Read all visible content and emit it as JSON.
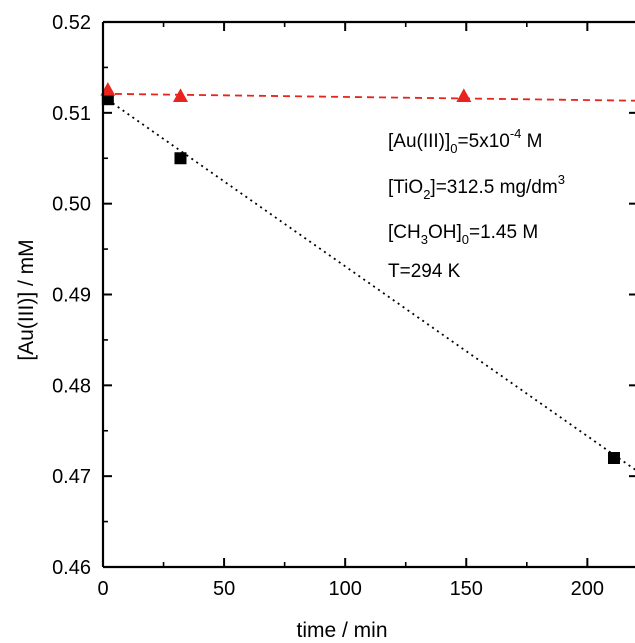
{
  "chart_data": {
    "type": "scatter",
    "title": "",
    "xlabel": "time / min",
    "ylabel": "[Au(III)] / mM",
    "xlim": [
      0,
      230
    ],
    "ylim": [
      0.46,
      0.52
    ],
    "x_ticks": [
      "0",
      "50",
      "100",
      "150",
      "200"
    ],
    "y_ticks": [
      "0.46",
      "0.47",
      "0.48",
      "0.49",
      "0.50",
      "0.51",
      "0.52"
    ],
    "grid": false,
    "series": [
      {
        "marker": "square",
        "color": "#000000",
        "x": [
          2,
          32,
          211
        ],
        "y": [
          0.5115,
          0.505,
          0.472
        ],
        "fit": {
          "style": "dotted",
          "color": "#000000",
          "x": [
            0,
            230
          ],
          "y": [
            0.5118,
            0.4688
          ]
        }
      },
      {
        "marker": "triangle",
        "color": "#e8241c",
        "x": [
          2,
          32,
          149
        ],
        "y": [
          0.5125,
          0.5118,
          0.5118
        ],
        "fit": {
          "style": "dashed",
          "color": "#e8241c",
          "x": [
            0,
            230
          ],
          "y": [
            0.5121,
            0.5113
          ]
        }
      }
    ],
    "annotations": [
      {
        "main": "[Au(III)]",
        "sub": "0",
        "rest": "=5x10",
        "sup": "-4",
        "tail": " M"
      },
      {
        "main": "[TiO",
        "sub": "2",
        "rest": "]=312.5 mg/dm",
        "sup": "3",
        "tail": ""
      },
      {
        "main": "[CH",
        "sub": "3",
        "rest": "OH]",
        "sub2": "0",
        "tail": "=1.45 M"
      },
      {
        "main": "T=294 K"
      }
    ]
  }
}
